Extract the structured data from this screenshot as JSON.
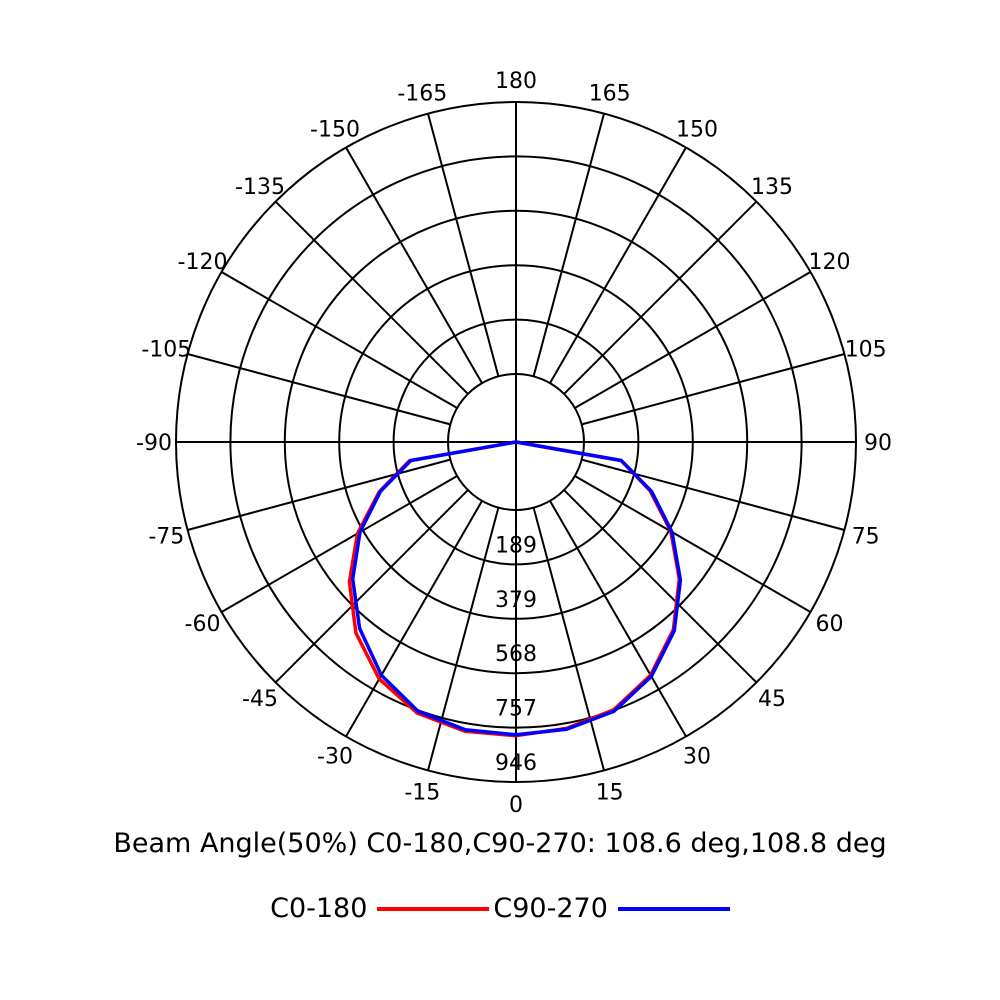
{
  "chart_data": {
    "type": "polar",
    "title": "",
    "angle_labels": [
      "180",
      "165",
      "150",
      "135",
      "120",
      "105",
      "90",
      "75",
      "60",
      "45",
      "30",
      "15",
      "0",
      "-15",
      "-30",
      "-45",
      "-60",
      "-75",
      "-90",
      "-105",
      "-120",
      "-135",
      "-150",
      "-165"
    ],
    "ring_labels": [
      "189",
      "379",
      "568",
      "757",
      "946"
    ],
    "rmax": 946,
    "grid": true,
    "series": [
      {
        "name": "C0-180",
        "color": "#ff0000",
        "angles": [
          -90,
          -80,
          -70,
          -60,
          -50,
          -40,
          -30,
          -20,
          -10,
          0,
          10,
          20,
          30,
          40,
          50,
          60,
          70,
          80,
          90
        ],
        "values": [
          0,
          140,
          270,
          400,
          520,
          630,
          715,
          767,
          785,
          785,
          775,
          755,
          700,
          615,
          505,
          385,
          260,
          135,
          0
        ]
      },
      {
        "name": "C90-270",
        "color": "#0000ff",
        "angles": [
          -90,
          -80,
          -70,
          -60,
          -50,
          -40,
          -30,
          -20,
          -10,
          0,
          10,
          20,
          30,
          40,
          50,
          60,
          70,
          80,
          90
        ],
        "values": [
          0,
          135,
          265,
          390,
          505,
          610,
          700,
          760,
          780,
          782,
          778,
          760,
          705,
          620,
          510,
          390,
          265,
          135,
          0
        ]
      }
    ]
  },
  "caption": "Beam Angle(50%) C0-180,C90-270: 108.6 deg,108.8 deg",
  "legend": [
    {
      "label": "C0-180",
      "color": "#ff0000"
    },
    {
      "label": "C90-270",
      "color": "#0000ff"
    }
  ]
}
